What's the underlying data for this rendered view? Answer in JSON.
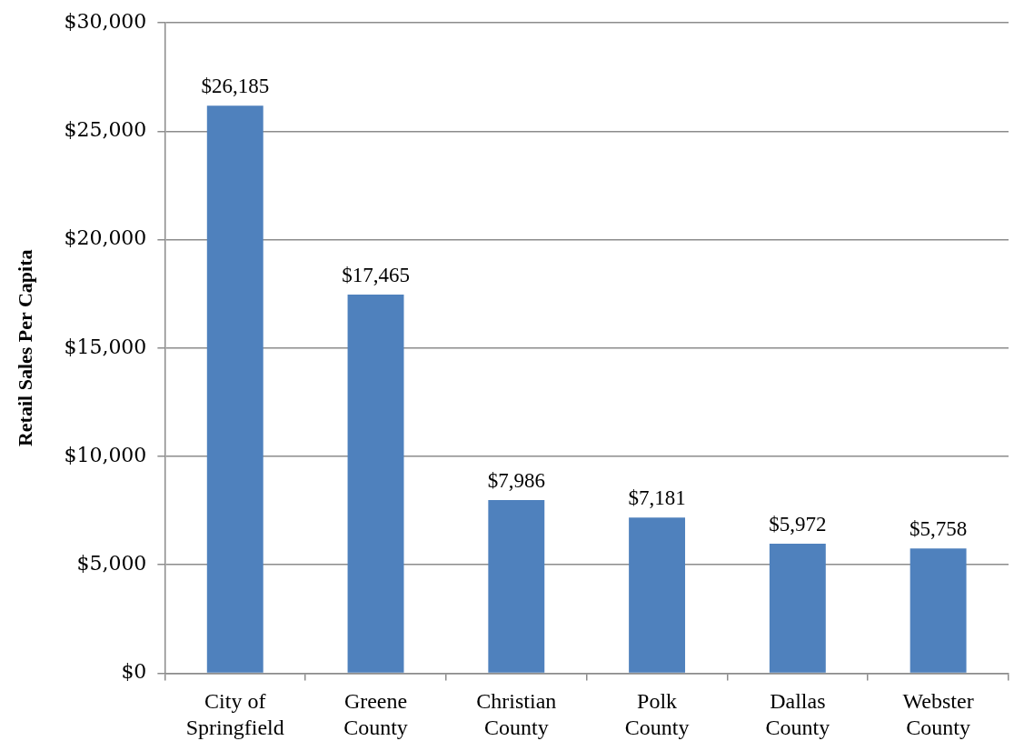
{
  "chart_data": {
    "type": "bar",
    "ylabel": "Retail Sales Per Capita",
    "categories": [
      "City of Springfield",
      "Greene County",
      "Christian County",
      "Polk County",
      "Dallas County",
      "Webster County"
    ],
    "values": [
      26185,
      17465,
      7986,
      7181,
      5972,
      5758
    ],
    "value_labels": [
      "$26,185",
      "$17,465",
      "$7,986",
      "$7,181",
      "$5,972",
      "$5,758"
    ],
    "color": "#4f81bd",
    "ylim": [
      0,
      30000
    ],
    "yticks": [
      {
        "value": 0,
        "label": "$0"
      },
      {
        "value": 5000,
        "label": "$5,000"
      },
      {
        "value": 10000,
        "label": "$10,000"
      },
      {
        "value": 15000,
        "label": "$15,000"
      },
      {
        "value": 20000,
        "label": "$20,000"
      },
      {
        "value": 25000,
        "label": "$25,000"
      },
      {
        "value": 30000,
        "label": "$30,000"
      }
    ],
    "grid": "y"
  }
}
